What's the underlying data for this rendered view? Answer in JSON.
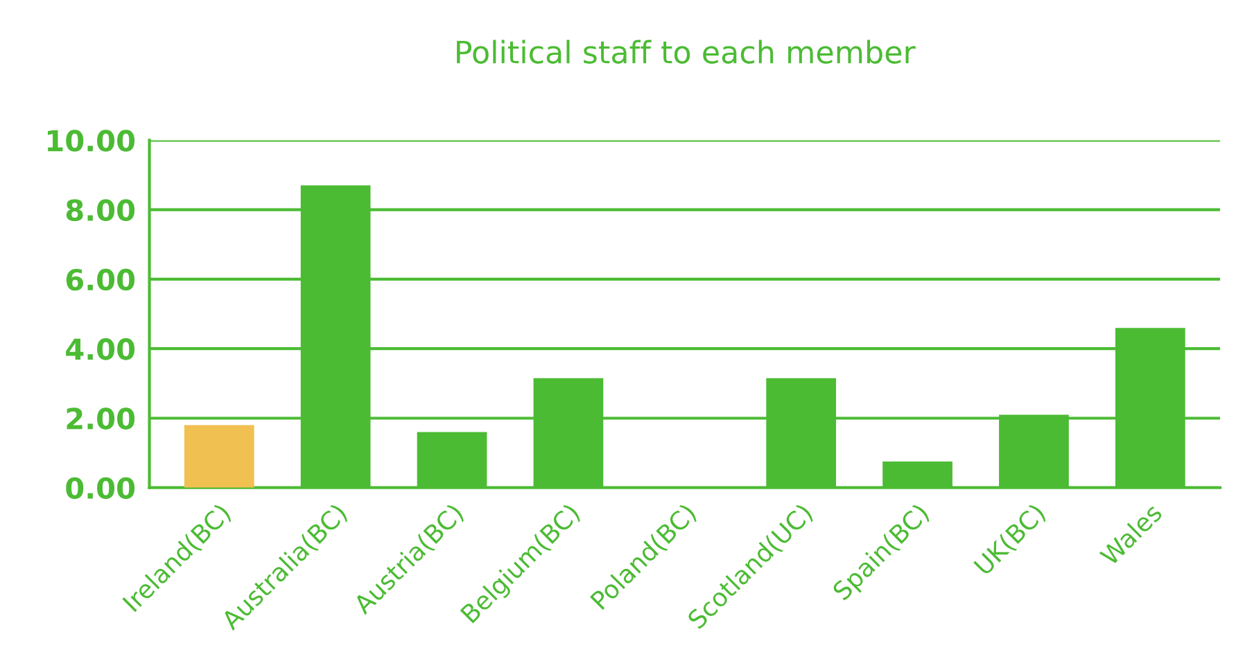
{
  "chart_data": {
    "type": "bar",
    "title": "Political staff to each member",
    "categories": [
      "Ireland(BC)",
      "Australia(BC)",
      "Austria(BC)",
      "Belgium(BC)",
      "Poland(BC)",
      "Scotland(UC)",
      "Spain(BC)",
      "UK(BC)",
      "Wales"
    ],
    "values": [
      1.8,
      8.7,
      1.6,
      3.15,
      0,
      3.15,
      0.75,
      2.1,
      4.6
    ],
    "colors": [
      "#f0c050",
      "#4cbb34",
      "#4cbb34",
      "#4cbb34",
      "#4cbb34",
      "#4cbb34",
      "#4cbb34",
      "#4cbb34",
      "#4cbb34"
    ],
    "ylim": [
      0,
      10
    ],
    "yticks": [
      {
        "value": 0,
        "label": "0.00"
      },
      {
        "value": 2,
        "label": "2.00"
      },
      {
        "value": 4,
        "label": "4.00"
      },
      {
        "value": 6,
        "label": "6.00"
      },
      {
        "value": 8,
        "label": "8.00"
      },
      {
        "value": 10,
        "label": "10.00"
      }
    ],
    "grid": "y",
    "legend": false
  }
}
